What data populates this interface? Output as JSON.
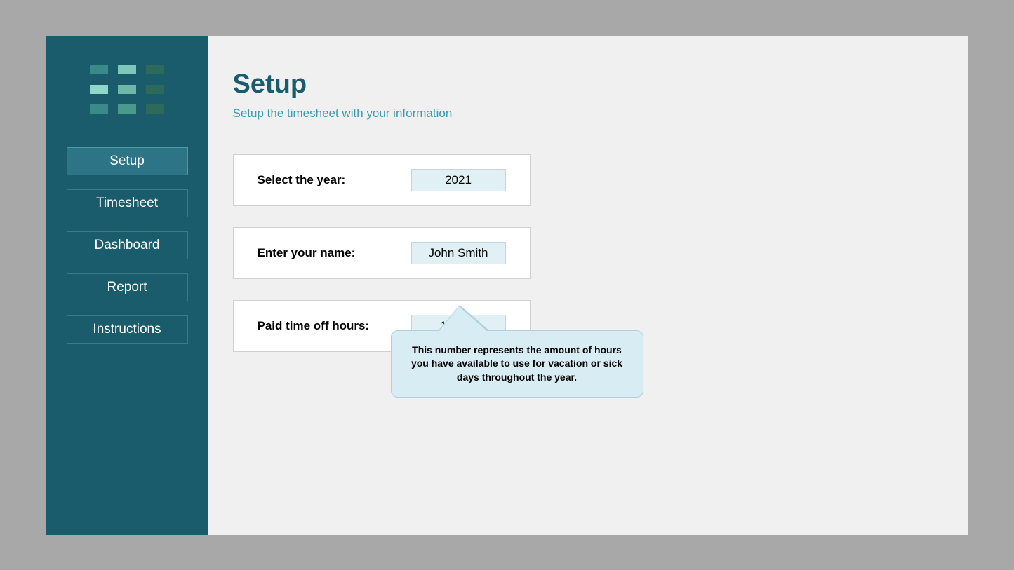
{
  "logo": {
    "cells": [
      "#3a8a8a",
      "#7dc8b8",
      "#2d6a5a",
      "#8dd8c8",
      "#6db8a8",
      "#2d6a5a",
      "#3a8a8a",
      "#4a9a8a",
      "#2d6a5a"
    ]
  },
  "nav": {
    "items": [
      {
        "label": "Setup",
        "active": true
      },
      {
        "label": "Timesheet",
        "active": false
      },
      {
        "label": "Dashboard",
        "active": false
      },
      {
        "label": "Report",
        "active": false
      },
      {
        "label": "Instructions",
        "active": false
      }
    ]
  },
  "page": {
    "title": "Setup",
    "subtitle": "Setup the timesheet with your information"
  },
  "form": {
    "year": {
      "label": "Select the year:",
      "value": "2021"
    },
    "name": {
      "label": "Enter your name:",
      "value": "John Smith"
    },
    "pto": {
      "label": "Paid time off hours:",
      "value": "120.00"
    }
  },
  "tooltip": {
    "text": "This number represents the amount of hours you have available to use for vacation or sick days throughout the year."
  }
}
